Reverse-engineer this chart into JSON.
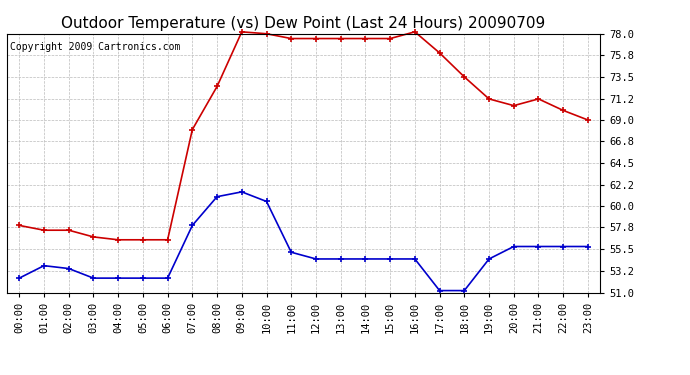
{
  "title": "Outdoor Temperature (vs) Dew Point (Last 24 Hours) 20090709",
  "copyright": "Copyright 2009 Cartronics.com",
  "hours": [
    "00:00",
    "01:00",
    "02:00",
    "03:00",
    "04:00",
    "05:00",
    "06:00",
    "07:00",
    "08:00",
    "09:00",
    "10:00",
    "11:00",
    "12:00",
    "13:00",
    "14:00",
    "15:00",
    "16:00",
    "17:00",
    "18:00",
    "19:00",
    "20:00",
    "21:00",
    "22:00",
    "23:00"
  ],
  "temp": [
    58.0,
    57.5,
    57.5,
    56.8,
    56.5,
    56.5,
    56.5,
    68.0,
    72.5,
    78.2,
    78.0,
    77.5,
    77.5,
    77.5,
    77.5,
    77.5,
    78.2,
    76.0,
    73.5,
    71.2,
    70.5,
    71.2,
    70.0,
    69.0
  ],
  "dewpoint": [
    52.5,
    53.8,
    53.5,
    52.5,
    52.5,
    52.5,
    52.5,
    58.0,
    61.0,
    61.5,
    60.5,
    55.2,
    54.5,
    54.5,
    54.5,
    54.5,
    54.5,
    51.2,
    51.2,
    54.5,
    55.8,
    55.8,
    55.8,
    55.8
  ],
  "temp_color": "#cc0000",
  "dew_color": "#0000cc",
  "background_color": "#ffffff",
  "grid_color": "#bbbbbb",
  "yticks_right": [
    51.0,
    53.2,
    55.5,
    57.8,
    60.0,
    62.2,
    64.5,
    66.8,
    69.0,
    71.2,
    73.5,
    75.8,
    78.0
  ],
  "ymin": 51.0,
  "ymax": 78.0,
  "title_fontsize": 11,
  "copyright_fontsize": 7,
  "tick_fontsize": 7.5,
  "marker": "+",
  "markersize": 5,
  "linewidth": 1.2
}
